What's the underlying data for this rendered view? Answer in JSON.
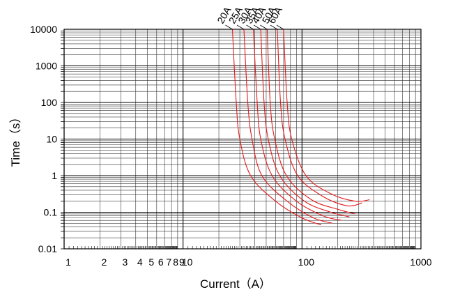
{
  "chart_data": {
    "type": "line",
    "title": "",
    "xlabel": "Current（A）",
    "ylabel": "Time（s）",
    "x_scale": "log",
    "y_scale": "log",
    "xlim": [
      1,
      1000
    ],
    "ylim": [
      0.01,
      10000
    ],
    "grid": true,
    "x_tick_labels": [
      "1",
      "2",
      "3",
      "4",
      "5",
      "6",
      "7",
      "8",
      "9",
      "10",
      "100",
      "1000"
    ],
    "y_tick_labels": [
      "0.01",
      "0.1",
      "1",
      "10",
      "100",
      "1000",
      "10000"
    ],
    "line_color": "#e41a1c",
    "series": [
      {
        "name": "20A",
        "points": [
          [
            26,
            10000
          ],
          [
            28,
            100
          ],
          [
            30,
            10
          ],
          [
            37,
            1
          ],
          [
            60,
            0.2
          ],
          [
            100,
            0.07
          ],
          [
            145,
            0.045
          ]
        ]
      },
      {
        "name": "25A",
        "points": [
          [
            32.5,
            10000
          ],
          [
            35,
            100
          ],
          [
            38,
            10
          ],
          [
            46,
            1
          ],
          [
            75,
            0.2
          ],
          [
            125,
            0.07
          ],
          [
            180,
            0.05
          ]
        ]
      },
      {
        "name": "30A",
        "points": [
          [
            39,
            10000
          ],
          [
            42,
            100
          ],
          [
            45,
            10
          ],
          [
            56,
            1
          ],
          [
            90,
            0.2
          ],
          [
            150,
            0.08
          ],
          [
            215,
            0.06
          ]
        ]
      },
      {
        "name": "35A",
        "points": [
          [
            45,
            10000
          ],
          [
            48,
            100
          ],
          [
            52,
            10
          ],
          [
            65,
            1
          ],
          [
            105,
            0.2
          ],
          [
            175,
            0.1
          ],
          [
            250,
            0.075
          ]
        ]
      },
      {
        "name": "40A",
        "points": [
          [
            51,
            10000
          ],
          [
            54,
            100
          ],
          [
            59,
            10
          ],
          [
            74,
            1
          ],
          [
            120,
            0.22
          ],
          [
            200,
            0.12
          ],
          [
            280,
            0.09
          ]
        ]
      },
      {
        "name": "50A",
        "points": [
          [
            62,
            10000
          ],
          [
            66,
            100
          ],
          [
            72,
            10
          ],
          [
            92,
            1
          ],
          [
            150,
            0.27
          ],
          [
            240,
            0.15
          ],
          [
            320,
            0.18
          ]
        ]
      },
      {
        "name": "60A",
        "points": [
          [
            70,
            10000
          ],
          [
            75,
            100
          ],
          [
            82,
            10
          ],
          [
            108,
            1
          ],
          [
            175,
            0.32
          ],
          [
            280,
            0.2
          ],
          [
            370,
            0.22
          ]
        ]
      }
    ]
  }
}
